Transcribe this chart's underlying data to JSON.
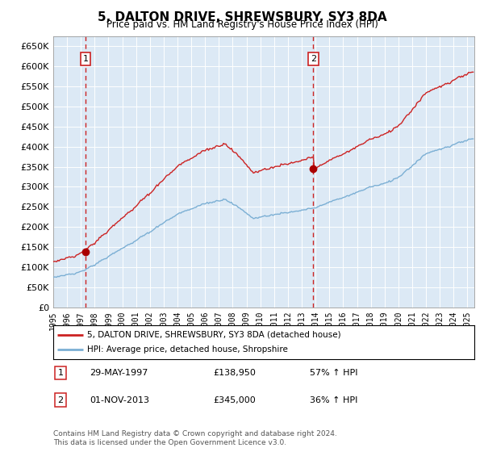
{
  "title": "5, DALTON DRIVE, SHREWSBURY, SY3 8DA",
  "subtitle": "Price paid vs. HM Land Registry's House Price Index (HPI)",
  "legend_line1": "5, DALTON DRIVE, SHREWSBURY, SY3 8DA (detached house)",
  "legend_line2": "HPI: Average price, detached house, Shropshire",
  "transaction1_date": "29-MAY-1997",
  "transaction1_price": 138950,
  "transaction1_label": "57% ↑ HPI",
  "transaction2_date": "01-NOV-2013",
  "transaction2_price": 345000,
  "transaction2_label": "36% ↑ HPI",
  "footnote": "Contains HM Land Registry data © Crown copyright and database right 2024.\nThis data is licensed under the Open Government Licence v3.0.",
  "hpi_line_color": "#7bafd4",
  "price_line_color": "#cc2222",
  "dot_color": "#aa0000",
  "vline_color": "#cc2222",
  "bg_color": "#dce9f5",
  "grid_color": "#ffffff",
  "ylim_min": 0,
  "ylim_max": 675000,
  "xlim_min": 1995,
  "xlim_max": 2025.5
}
